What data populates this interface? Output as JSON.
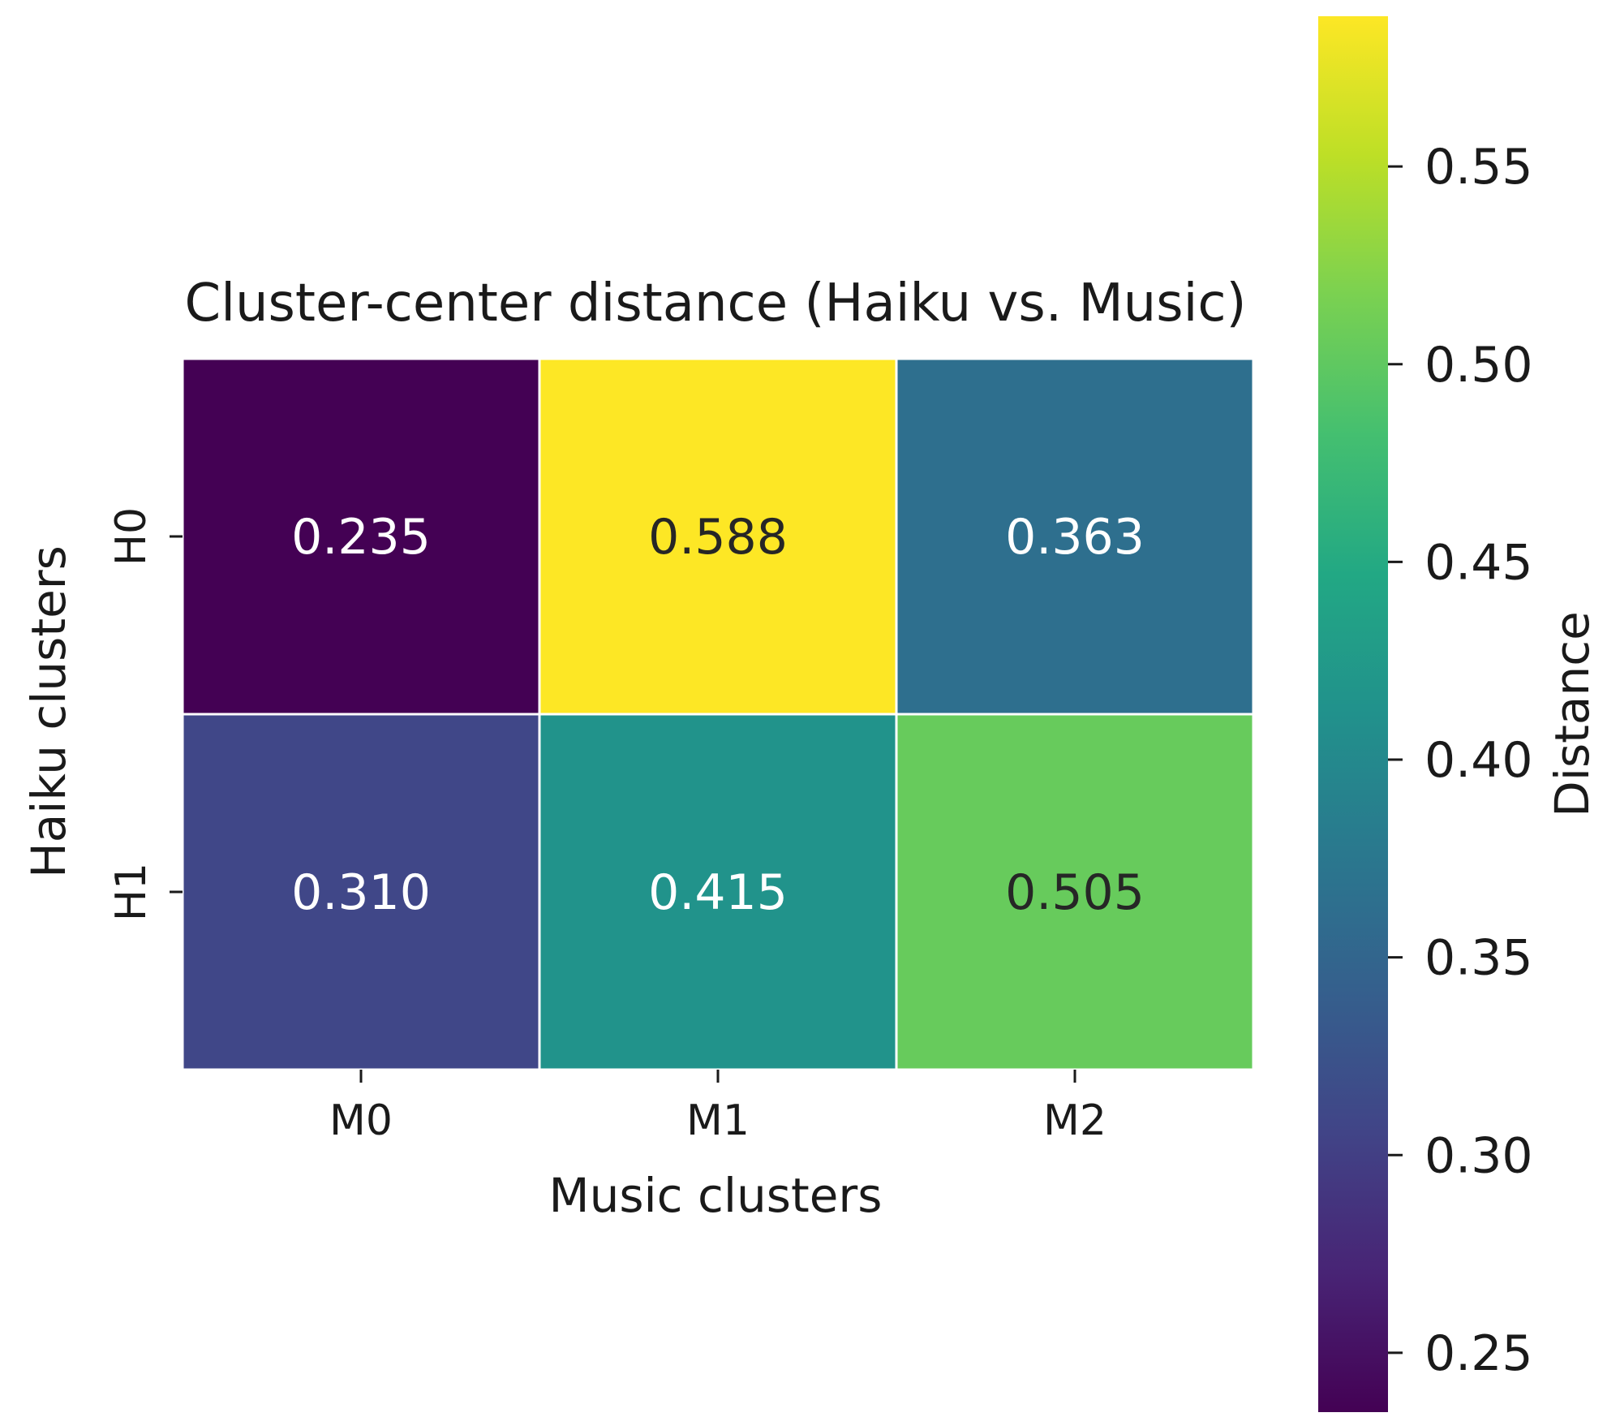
{
  "chart_data": {
    "type": "heatmap",
    "title": "Cluster-center distance (Haiku vs. Music)",
    "xlabel": "Music clusters",
    "ylabel": "Haiku clusters",
    "x_categories": [
      "M0",
      "M1",
      "M2"
    ],
    "y_categories": [
      "H0",
      "H1"
    ],
    "values": [
      [
        0.235,
        0.588,
        0.363
      ],
      [
        0.31,
        0.415,
        0.505
      ]
    ],
    "cell_labels": [
      [
        "0.235",
        "0.588",
        "0.363"
      ],
      [
        "0.310",
        "0.415",
        "0.505"
      ]
    ],
    "colormap": "viridis",
    "colorbar": {
      "label": "Distance",
      "range": [
        0.235,
        0.588
      ],
      "ticks": [
        0.25,
        0.3,
        0.35,
        0.4,
        0.45,
        0.5,
        0.55
      ],
      "tick_labels": [
        "0.25",
        "0.30",
        "0.35",
        "0.40",
        "0.45",
        "0.50",
        "0.55"
      ]
    },
    "grid": false
  }
}
